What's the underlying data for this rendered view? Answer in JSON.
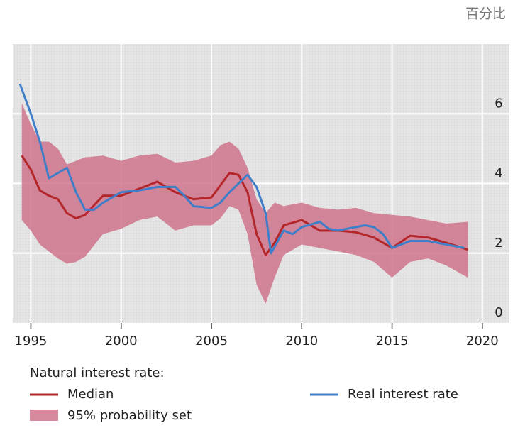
{
  "chart_data": {
    "type": "line",
    "unit_label": "百分比",
    "legend_title": "Natural interest rate:",
    "xlim": [
      1994,
      2021.5
    ],
    "ylim": [
      0,
      8
    ],
    "xticks": [
      1995,
      2000,
      2005,
      2010,
      2015,
      2020
    ],
    "yticks": [
      0,
      2,
      4,
      6
    ],
    "grid": true,
    "x": [
      1994.5,
      1995,
      1995.5,
      1996,
      1996.5,
      1997,
      1997.5,
      1998,
      1999,
      2000,
      2001,
      2002,
      2003,
      2004,
      2005,
      2005.5,
      2006,
      2006.5,
      2007,
      2007.5,
      2008,
      2008.5,
      2009,
      2010,
      2011,
      2012,
      2013,
      2014,
      2015,
      2016,
      2017,
      2018,
      2019.2
    ],
    "band": {
      "name": "95% probability set",
      "color": "#cd6b84",
      "upper": [
        6.3,
        5.7,
        5.2,
        5.2,
        5.0,
        4.55,
        4.65,
        4.75,
        4.8,
        4.65,
        4.8,
        4.85,
        4.6,
        4.65,
        4.8,
        5.1,
        5.2,
        5.0,
        4.45,
        3.55,
        3.15,
        3.45,
        3.35,
        3.45,
        3.3,
        3.25,
        3.3,
        3.15,
        3.1,
        3.05,
        2.95,
        2.85,
        2.9
      ],
      "lower": [
        2.95,
        2.65,
        2.25,
        2.05,
        1.85,
        1.7,
        1.75,
        1.9,
        2.55,
        2.7,
        2.95,
        3.05,
        2.65,
        2.8,
        2.8,
        3.0,
        3.35,
        3.25,
        2.55,
        1.1,
        0.55,
        1.3,
        1.95,
        2.25,
        2.15,
        2.05,
        1.95,
        1.75,
        1.3,
        1.75,
        1.85,
        1.65,
        1.3
      ]
    },
    "series": [
      {
        "name": "Median",
        "color": "#b3262a",
        "values": [
          4.8,
          4.4,
          3.8,
          3.65,
          3.55,
          3.15,
          3.0,
          3.1,
          3.65,
          3.65,
          3.85,
          4.05,
          3.75,
          3.55,
          3.6,
          3.95,
          4.3,
          4.25,
          3.75,
          2.55,
          1.95,
          2.3,
          2.8,
          2.95,
          2.65,
          2.65,
          2.6,
          2.45,
          2.15,
          2.5,
          2.45,
          2.3,
          2.1
        ]
      },
      {
        "name": "Real interest rate",
        "color": "#3f7ec8",
        "x": [
          1994.4,
          1995,
          1995.5,
          1996,
          1996.5,
          1997,
          1997.5,
          1998,
          1998.5,
          1999,
          2000,
          2001,
          2002,
          2003,
          2003.5,
          2004,
          2005,
          2005.5,
          2006,
          2006.5,
          2007,
          2007.5,
          2008,
          2008.3,
          2009,
          2009.5,
          2010,
          2011,
          2011.5,
          2012,
          2013,
          2013.5,
          2014,
          2014.5,
          2015,
          2016,
          2017,
          2018,
          2019
        ],
        "values": [
          6.85,
          6.0,
          5.2,
          4.15,
          4.3,
          4.45,
          3.75,
          3.25,
          3.25,
          3.45,
          3.75,
          3.8,
          3.9,
          3.9,
          3.65,
          3.35,
          3.3,
          3.45,
          3.75,
          4.0,
          4.25,
          3.9,
          3.15,
          2.0,
          2.65,
          2.55,
          2.75,
          2.9,
          2.7,
          2.65,
          2.75,
          2.8,
          2.75,
          2.55,
          2.15,
          2.35,
          2.35,
          2.25,
          2.15
        ]
      }
    ]
  }
}
